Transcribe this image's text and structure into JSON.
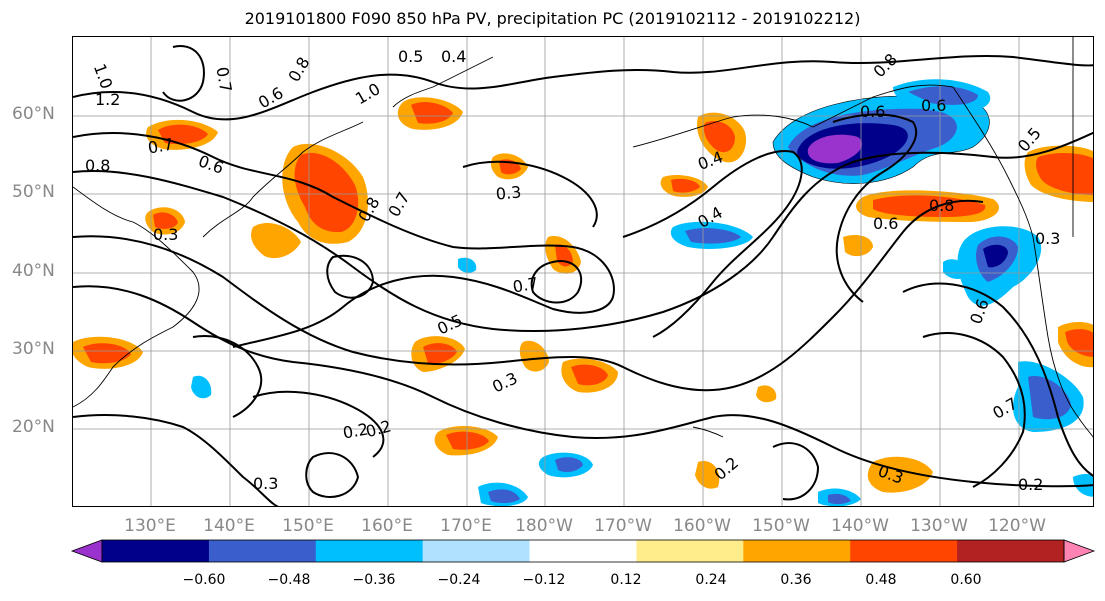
{
  "title": "2019101800 F090 850 hPa PV, precipitation PC (2019102112 - 2019102212)",
  "lat_labels": [
    "60°N",
    "50°N",
    "40°N",
    "30°N",
    "20°N"
  ],
  "lon_labels": [
    "130°E",
    "140°E",
    "150°E",
    "160°E",
    "170°E",
    "180°W",
    "170°W",
    "160°W",
    "150°W",
    "140°W",
    "130°W",
    "120°W"
  ],
  "contour_labels": [
    "1.0",
    "0.5",
    "0.4",
    "0.6",
    "0.8",
    "0.7",
    "1.0",
    "1.2",
    "0.7",
    "0.8",
    "0.6",
    "0.8",
    "0.7",
    "0.3",
    "0.5",
    "0.3",
    "0.4",
    "0.4",
    "0.6",
    "0.8",
    "0.6",
    "0.6",
    "0.3",
    "0.8",
    "0.5",
    "0.7",
    "0.3",
    "0.3",
    "0.2",
    "0.2",
    "0.2",
    "0.3",
    "0.7",
    "0.6",
    "0.2"
  ],
  "colorbar": {
    "colors": [
      "#9a32cd",
      "#00008b",
      "#3a5fcd",
      "#00bfff",
      "#b0e2ff",
      "#ffffff",
      "#ffec8b",
      "#ffa500",
      "#ff4500",
      "#b22222",
      "#ff83b4"
    ],
    "tick_labels": [
      "−0.60",
      "−0.48",
      "−0.36",
      "−0.24",
      "−0.12",
      "0.12",
      "0.24",
      "0.36",
      "0.48",
      "0.60"
    ]
  }
}
